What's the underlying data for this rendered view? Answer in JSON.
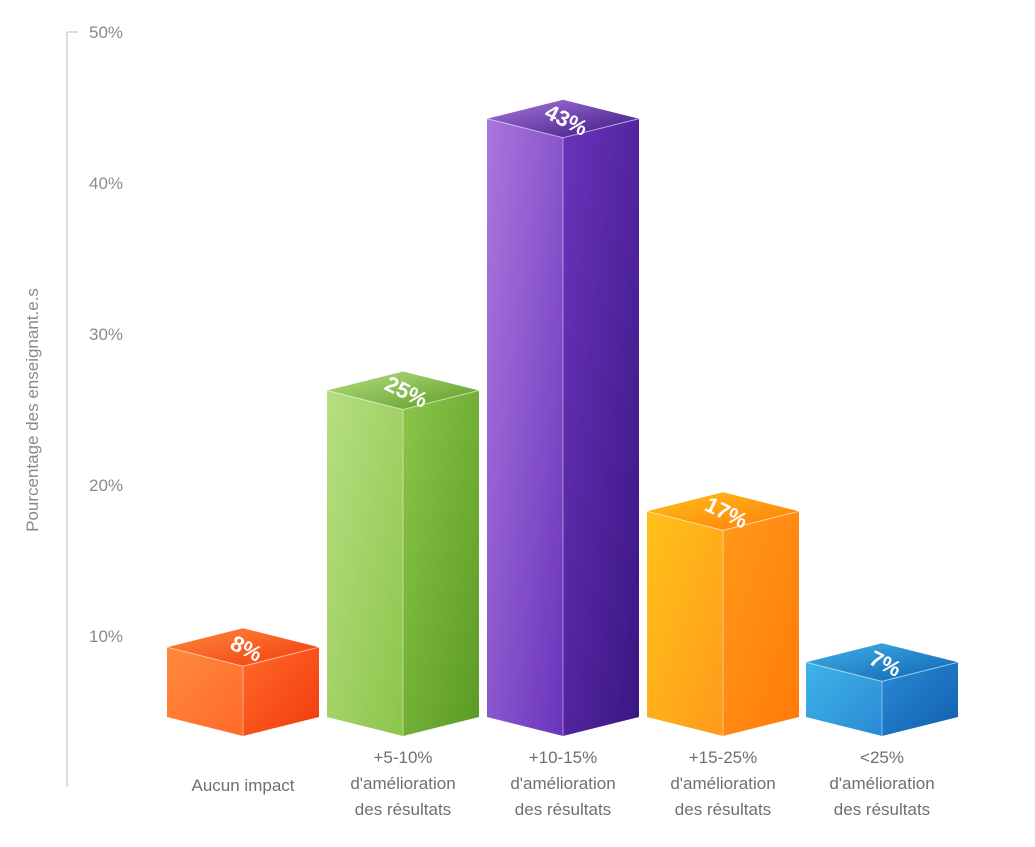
{
  "chart_data": {
    "type": "bar",
    "ylabel": "Pourcentage des enseignant.e.s",
    "ylim": [
      0,
      50
    ],
    "yticks": [
      10,
      20,
      30,
      40,
      50
    ],
    "ytick_labels": [
      "10%",
      "20%",
      "30%",
      "40%",
      "50%"
    ],
    "categories": [
      [
        "Aucun impact"
      ],
      [
        "+5-10%",
        "d'amélioration",
        "des résultats"
      ],
      [
        "+10-15%",
        "d'amélioration",
        "des résultats"
      ],
      [
        "+15-25%",
        "d'amélioration",
        "des résultats"
      ],
      [
        "<25%",
        "d'amélioration",
        "des résultats"
      ]
    ],
    "values": [
      8,
      25,
      43,
      17,
      7
    ],
    "data_labels": [
      "8%",
      "25%",
      "43%",
      "17%",
      "7%"
    ],
    "colors": [
      {
        "light": "#ff8a3d",
        "dark": "#f23a0e",
        "top": "#ff6a2a"
      },
      {
        "light": "#b7df82",
        "dark": "#5a9a24",
        "top": "#8cc54a"
      },
      {
        "light": "#a977dd",
        "dark": "#3a1682",
        "top": "#6a34bb"
      },
      {
        "light": "#ffc21a",
        "dark": "#ff7a0a",
        "top": "#ff9a1a"
      },
      {
        "light": "#3fb4e8",
        "dark": "#1060b0",
        "top": "#2a8ad4"
      }
    ]
  }
}
